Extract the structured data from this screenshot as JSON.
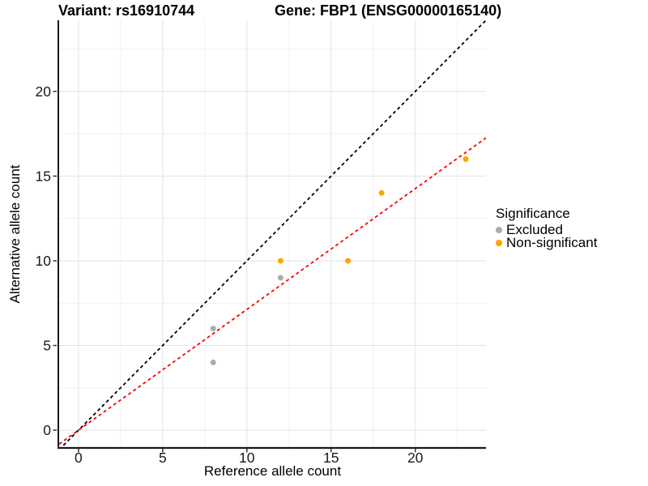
{
  "header": {
    "title_left": "Variant: rs16910744",
    "title_right": "Gene: FBP1 (ENSG00000165140)"
  },
  "chart_data": {
    "type": "scatter",
    "title": "Variant: rs16910744 / Gene: FBP1 (ENSG00000165140)",
    "xlabel": "Reference allele count",
    "ylabel": "Alternative allele count",
    "xlim": [
      -1.15,
      24.2
    ],
    "ylim": [
      -1.0,
      24.2
    ],
    "x_ticks": [
      0,
      5,
      10,
      15,
      20
    ],
    "y_ticks": [
      0,
      5,
      10,
      15,
      20
    ],
    "x_minor_ticks": [
      2.5,
      7.5,
      12.5,
      17.5,
      22.5
    ],
    "y_minor_ticks": [
      2.5,
      7.5,
      12.5,
      17.5,
      22.5
    ],
    "grid": true,
    "series": [
      {
        "name": "Excluded",
        "color": "#ABABAB",
        "points": [
          [
            8,
            4
          ],
          [
            8,
            6
          ],
          [
            12,
            9
          ]
        ]
      },
      {
        "name": "Non-significant",
        "color": "#FFA500",
        "points": [
          [
            12,
            10
          ],
          [
            16,
            10
          ],
          [
            18,
            14
          ],
          [
            23,
            16
          ]
        ]
      }
    ],
    "lines": [
      {
        "name": "identity-line",
        "slope": 1,
        "intercept": 0,
        "color": "#000000",
        "dash": "4,3.5"
      },
      {
        "name": "regression-line",
        "slope": 0.713,
        "intercept": 0,
        "color": "#FF0000",
        "dash": "4,3.5"
      }
    ],
    "legend": {
      "title": "Significance",
      "position": "right",
      "items": [
        {
          "label": "Excluded",
          "color": "#ABABAB"
        },
        {
          "label": "Non-significant",
          "color": "#FFA500"
        }
      ]
    }
  }
}
